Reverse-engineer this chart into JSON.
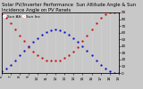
{
  "title": "Solar PV/Inverter Performance  Sun Altitude Angle & Sun Incidence Angle on PV Panels",
  "legend_labels": [
    "Sun Alt",
    "Sun Inc"
  ],
  "legend_colors": [
    "#0000cc",
    "#cc0000"
  ],
  "x_values": [
    6,
    6.5,
    7,
    7.5,
    8,
    8.5,
    9,
    9.5,
    10,
    10.5,
    11,
    11.5,
    12,
    12.5,
    13,
    13.5,
    14,
    14.5,
    15,
    15.5,
    16,
    16.5,
    17,
    17.5,
    18,
    18.5,
    19
  ],
  "sun_alt": [
    2,
    6,
    12,
    19,
    26,
    33,
    40,
    46,
    52,
    57,
    61,
    64,
    65,
    64,
    61,
    57,
    52,
    46,
    40,
    33,
    26,
    19,
    12,
    6,
    2,
    0,
    0
  ],
  "sun_inc": [
    88,
    82,
    74,
    65,
    56,
    47,
    39,
    32,
    26,
    22,
    19,
    18,
    18,
    19,
    22,
    26,
    32,
    39,
    47,
    56,
    65,
    74,
    82,
    88,
    90,
    90,
    90
  ],
  "ylim": [
    0,
    90
  ],
  "xlim": [
    6,
    19
  ],
  "yticks_right": [
    0,
    10,
    20,
    30,
    40,
    50,
    60,
    70,
    80,
    90
  ],
  "x_ticks": [
    6,
    7,
    8,
    9,
    10,
    11,
    12,
    13,
    14,
    15,
    16,
    17,
    18,
    19
  ],
  "background_color": "#c8c8c8",
  "grid_color": "#e8e8e8",
  "title_fontsize": 3.8,
  "tick_fontsize": 3.0,
  "legend_fontsize": 3.2,
  "dot_size": 1.2
}
